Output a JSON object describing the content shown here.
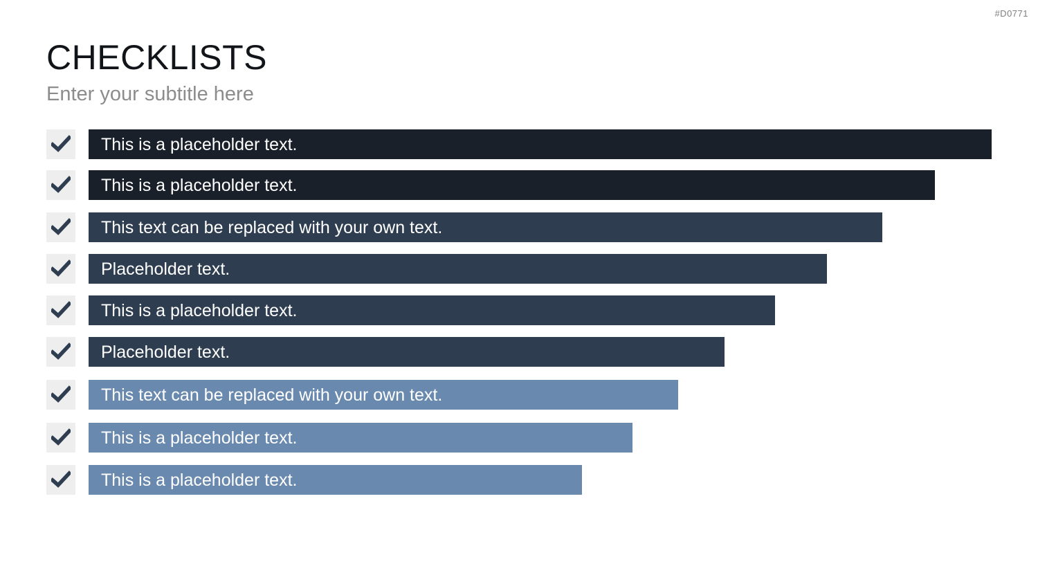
{
  "slide_id": "#D0771",
  "title": "CHECKLISTS",
  "subtitle": "Enter your subtitle here",
  "colors": {
    "check_mark": "#2e3d50",
    "check_box_bg": "#eeeeee",
    "bar_dark": "#1a202a",
    "bar_mid": "#2e3d50",
    "bar_light": "#6a89ae"
  },
  "items": [
    {
      "text": "This is a placeholder text.",
      "color": "#1a202a",
      "length_fraction": 1.0,
      "icon": "check-icon"
    },
    {
      "text": "This is a placeholder text.",
      "color": "#1a202a",
      "length_fraction": 0.937,
      "icon": "check-icon"
    },
    {
      "text": "This text can be replaced with your own text.",
      "color": "#2e3d50",
      "length_fraction": 0.879,
      "icon": "check-icon"
    },
    {
      "text": "Placeholder text.",
      "color": "#2e3d50",
      "length_fraction": 0.818,
      "icon": "check-icon"
    },
    {
      "text": "This is a placeholder text.",
      "color": "#2e3d50",
      "length_fraction": 0.76,
      "icon": "check-icon"
    },
    {
      "text": "Placeholder text.",
      "color": "#2e3d50",
      "length_fraction": 0.704,
      "icon": "check-icon"
    },
    {
      "text": "This text can be replaced with your own text.",
      "color": "#6a89ae",
      "length_fraction": 0.653,
      "icon": "check-icon"
    },
    {
      "text": "This is a placeholder text.",
      "color": "#6a89ae",
      "length_fraction": 0.602,
      "icon": "check-icon"
    },
    {
      "text": "This is a placeholder text.",
      "color": "#6a89ae",
      "length_fraction": 0.546,
      "icon": "check-icon"
    }
  ]
}
